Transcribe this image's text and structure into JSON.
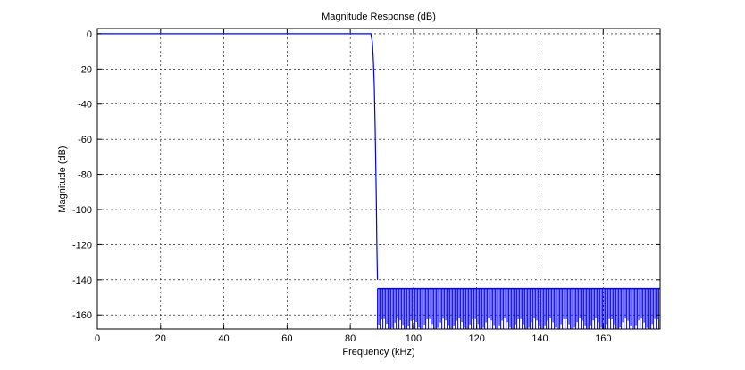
{
  "chart_data": {
    "type": "line",
    "title": "Magnitude Response (dB)",
    "xlabel": "Frequency (kHz)",
    "ylabel": "Magnitude (dB)",
    "xlim": [
      0,
      178
    ],
    "ylim": [
      -168,
      3
    ],
    "xticks": [
      0,
      20,
      40,
      60,
      80,
      100,
      120,
      140,
      160
    ],
    "yticks": [
      0,
      -20,
      -40,
      -60,
      -80,
      -100,
      -120,
      -140,
      -160
    ],
    "xtick_labels": [
      "0",
      "20",
      "40",
      "60",
      "80",
      "100",
      "120",
      "140",
      "160"
    ],
    "ytick_labels": [
      "0",
      "-20",
      "-40",
      "-60",
      "-80",
      "-100",
      "-120",
      "-140",
      "-160"
    ],
    "grid": true,
    "line_color": "#0000ff",
    "series": [
      {
        "x": [
          0,
          20,
          40,
          60,
          80,
          86.5,
          87.0,
          87.3,
          87.6,
          87.9,
          88.2,
          88.4,
          88.6
        ],
        "y": [
          0,
          0,
          0,
          0,
          0,
          0,
          -5,
          -15,
          -30,
          -57,
          -90,
          -120,
          -140
        ]
      }
    ],
    "stopband": {
      "x_start": 88.6,
      "x_end": 178,
      "upper_db": -145,
      "lower_db": -168
    }
  }
}
